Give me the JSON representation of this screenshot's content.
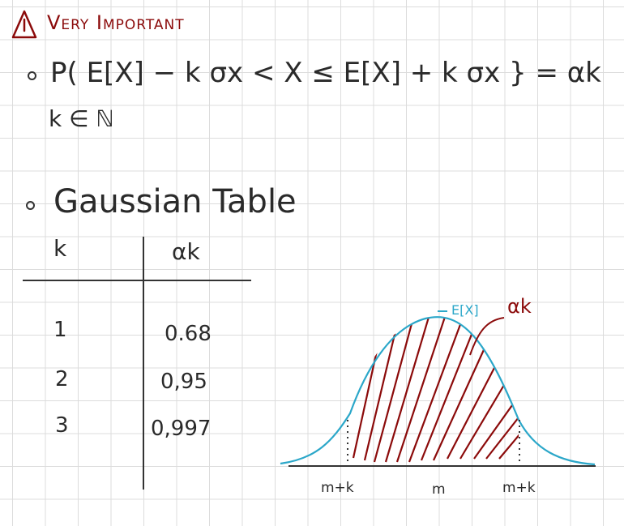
{
  "warning": {
    "title": "Very Important",
    "icon": "warning-triangle-icon",
    "color": "#8b0a0a"
  },
  "formula": {
    "text": "P( E[X] − k σx < X ≤ E[X] + k σx } = αk",
    "domain": "k ∈ ℕ"
  },
  "gaussian_table": {
    "title": "Gaussian Table",
    "headers": [
      "k",
      "αk"
    ],
    "rows": [
      {
        "k": "1",
        "alpha": "0.68"
      },
      {
        "k": "2",
        "alpha": "0,95"
      },
      {
        "k": "3",
        "alpha": "0,997"
      }
    ]
  },
  "chart_data": {
    "type": "area",
    "curve": "gaussian",
    "annotations": {
      "mean": "E[X]",
      "area": "αk"
    },
    "x_tick_labels": [
      "m+k",
      "m",
      "m+k"
    ],
    "colors": {
      "curve": "#2ba7c9",
      "shading": "#8b0a0a"
    }
  }
}
